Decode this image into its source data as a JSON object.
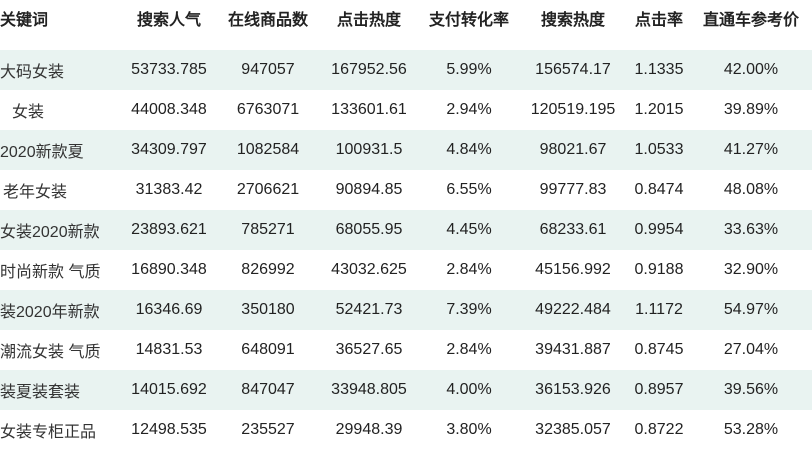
{
  "table": {
    "headers": [
      "关键词",
      "搜索人气",
      "在线商品数",
      "点击热度",
      "支付转化率",
      "搜索热度",
      "点击率",
      "直通车参考价"
    ],
    "rows": [
      [
        "大码女装",
        "53733.785",
        "947057",
        "167952.56",
        "5.99%",
        "156574.17",
        "1.1335",
        "42.00%"
      ],
      [
        "女装",
        "44008.348",
        "6763071",
        "133601.61",
        "2.94%",
        "120519.195",
        "1.2015",
        "39.89%"
      ],
      [
        "2020新款夏",
        "34309.797",
        "1082584",
        "100931.5",
        "4.84%",
        "98021.67",
        "1.0533",
        "41.27%"
      ],
      [
        "老年女装",
        "31383.42",
        "2706621",
        "90894.85",
        "6.55%",
        "99777.83",
        "0.8474",
        "48.08%"
      ],
      [
        "女装2020新款",
        "23893.621",
        "785271",
        "68055.95",
        "4.45%",
        "68233.61",
        "0.9954",
        "33.63%"
      ],
      [
        "时尚新款 气质",
        "16890.348",
        "826992",
        "43032.625",
        "2.84%",
        "45156.992",
        "0.9188",
        "32.90%"
      ],
      [
        "装2020年新款",
        "16346.69",
        "350180",
        "52421.73",
        "7.39%",
        "49222.484",
        "1.1172",
        "54.97%"
      ],
      [
        "潮流女装 气质",
        "14831.53",
        "648091",
        "36527.65",
        "2.84%",
        "39431.887",
        "0.8745",
        "27.04%"
      ],
      [
        "装夏装套装",
        "14015.692",
        "847047",
        "33948.805",
        "4.00%",
        "36153.926",
        "0.8957",
        "39.56%"
      ],
      [
        "女装专柜正品",
        "12498.535",
        "235527",
        "29948.39",
        "3.80%",
        "32385.057",
        "0.8722",
        "53.28%"
      ]
    ],
    "stripe_color": "#e9f3f1"
  }
}
